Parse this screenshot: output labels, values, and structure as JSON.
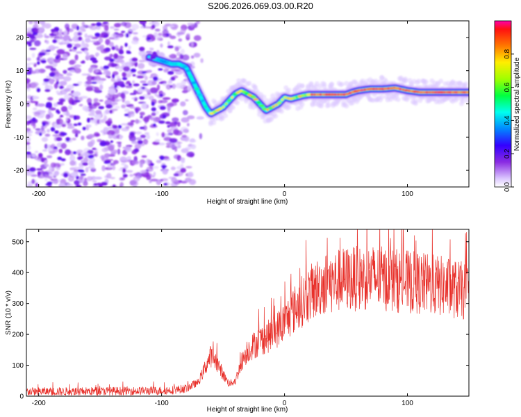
{
  "figure": {
    "title": "S206.2026.069.03.00.R20"
  },
  "chart_data": [
    {
      "type": "heatmap",
      "xlabel": "Height of straight line (km)",
      "ylabel": "Frequency (Hz)",
      "xlim": [
        -210,
        150
      ],
      "ylim": [
        -25,
        25
      ],
      "x_ticks": [
        -200,
        -100,
        0,
        100
      ],
      "y_ticks": [
        -20,
        -10,
        0,
        10,
        20
      ],
      "x_tick_labels": [
        "-200",
        "-100",
        "0",
        "100"
      ],
      "y_tick_labels": [
        "-20",
        "-10",
        "0",
        "10",
        "20"
      ],
      "ridge": {
        "x": [
          -110,
          -100,
          -92,
          -86,
          -80,
          -76,
          -72,
          -68,
          -64,
          -60,
          -55,
          -50,
          -45,
          -40,
          -35,
          -30,
          -25,
          -20,
          -15,
          -10,
          -5,
          0,
          5,
          10,
          15,
          20,
          30,
          40,
          50,
          55,
          60,
          70,
          80,
          90,
          100,
          110,
          120,
          130,
          140,
          150
        ],
        "y": [
          14,
          13,
          12,
          12,
          11,
          8,
          5,
          2,
          -1,
          -3,
          -2,
          -1,
          1,
          3,
          4,
          3,
          2,
          0,
          -2,
          -1,
          0,
          2,
          1.5,
          2,
          2.5,
          2.8,
          2.8,
          2.8,
          2.8,
          3.5,
          4,
          4.5,
          4.5,
          4.8,
          4,
          3.5,
          3.5,
          3.5,
          3.5,
          3.5
        ]
      },
      "noise_region_x": [
        -210,
        -90
      ],
      "colorbar": {
        "label": "Normalized spectral amplitude",
        "range": [
          0,
          1
        ],
        "ticks": [
          0.0,
          0.2,
          0.4,
          0.6,
          0.8
        ],
        "tick_labels": [
          "0.0",
          "0.2",
          "0.4",
          "0.6",
          "0.8"
        ]
      }
    },
    {
      "type": "line",
      "xlabel": "Height of straight line (km)",
      "ylabel": "SNR (10 * v/v)",
      "xlim": [
        -210,
        150
      ],
      "ylim": [
        0,
        540
      ],
      "x_ticks": [
        -200,
        -100,
        0,
        100
      ],
      "y_ticks": [
        0,
        100,
        200,
        300,
        400,
        500
      ],
      "x_tick_labels": [
        "-200",
        "-100",
        "0",
        "100"
      ],
      "y_tick_labels": [
        "0",
        "100",
        "200",
        "300",
        "400",
        "500"
      ],
      "color": "#e8302a",
      "envelope": {
        "x": [
          -210,
          -180,
          -150,
          -120,
          -100,
          -90,
          -80,
          -70,
          -65,
          -60,
          -55,
          -50,
          -45,
          -40,
          -35,
          -30,
          -20,
          -10,
          0,
          10,
          20,
          30,
          40,
          50,
          60,
          70,
          80,
          90,
          100,
          110,
          120,
          130,
          140,
          150
        ],
        "y": [
          15,
          15,
          16,
          17,
          18,
          20,
          25,
          45,
          90,
          130,
          110,
          70,
          40,
          50,
          110,
          150,
          180,
          200,
          240,
          290,
          330,
          360,
          370,
          380,
          380,
          385,
          380,
          375,
          370,
          365,
          360,
          355,
          345,
          335
        ]
      }
    }
  ]
}
